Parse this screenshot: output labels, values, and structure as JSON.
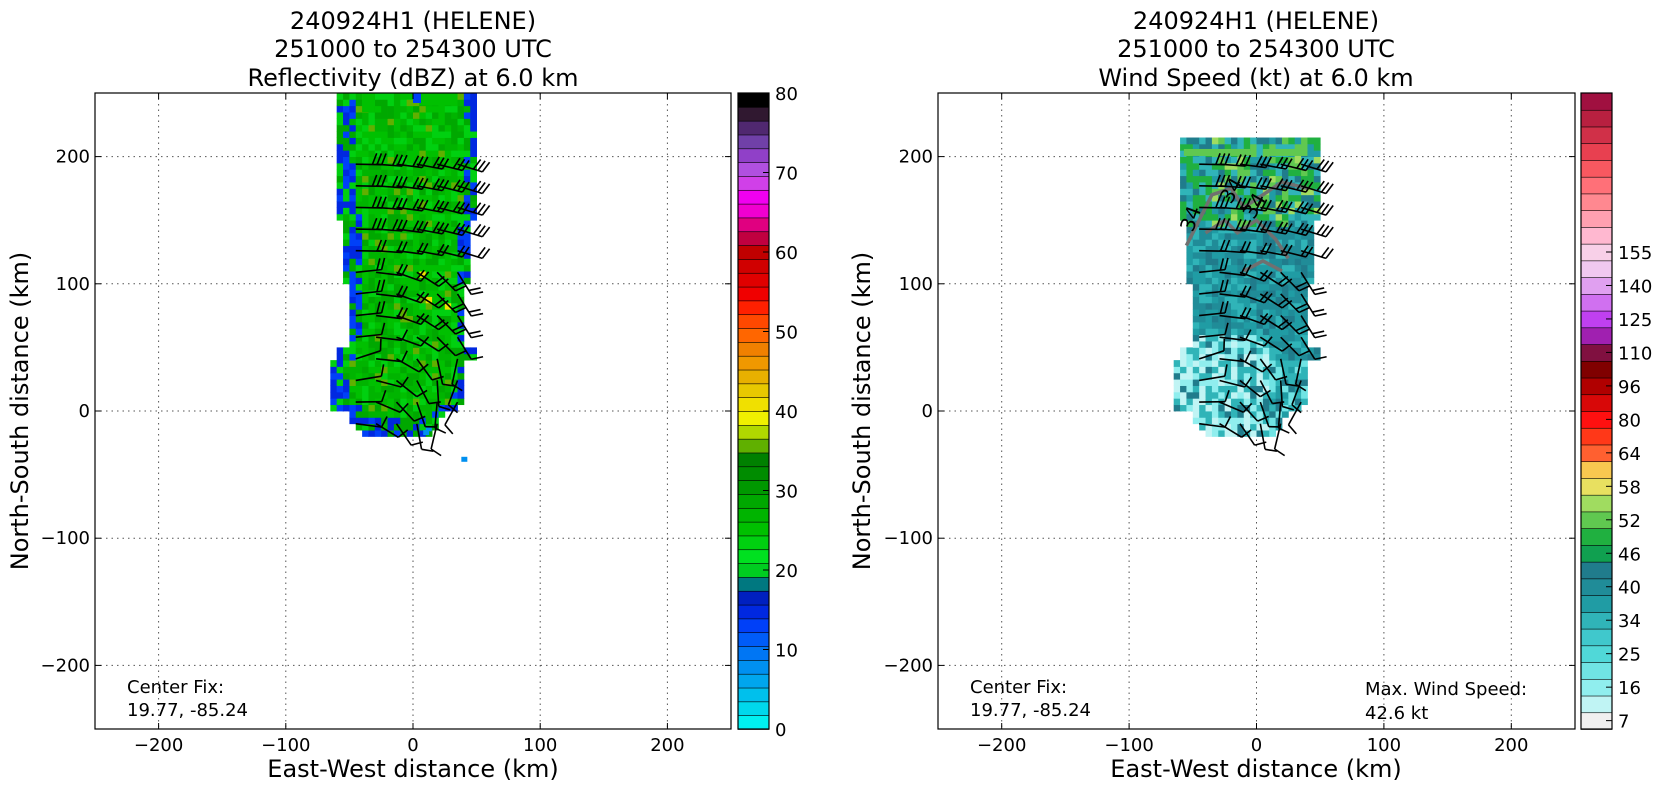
{
  "chart_data": [
    {
      "type": "heatmap",
      "title_lines": [
        "240924H1 (HELENE)",
        "251000 to 254300 UTC",
        "Reflectivity (dBZ) at 6.0 km"
      ],
      "xlabel": "East-West distance (km)",
      "ylabel": "North-South distance (km)",
      "xlim": [
        -250,
        250
      ],
      "ylim": [
        -250,
        250
      ],
      "xticks": [
        -200,
        -100,
        0,
        100,
        200
      ],
      "yticks": [
        -200,
        -100,
        0,
        100,
        200
      ],
      "xtick_labels": [
        "−200",
        "−100",
        "0",
        "100",
        "200"
      ],
      "ytick_labels": [
        "−200",
        "−100",
        "0",
        "100",
        "200"
      ],
      "grid": true,
      "annotations": [
        {
          "lines": [
            "Center Fix:",
            "19.77, -85.24"
          ],
          "position": "bottom-left"
        }
      ],
      "colorbar": {
        "min": 0,
        "max": 80,
        "levels": 32,
        "tick_values": [
          0,
          10,
          20,
          30,
          40,
          50,
          60,
          70,
          80
        ],
        "tick_labels": [
          "0",
          "10",
          "20",
          "30",
          "40",
          "50",
          "60",
          "70",
          "80"
        ],
        "colors": [
          "#00f0f0",
          "#00d8ec",
          "#00c0ec",
          "#00a6ee",
          "#0090f0",
          "#0076f4",
          "#005cf8",
          "#0040f8",
          "#0028e0",
          "#0020c0",
          "#007880",
          "#00cc20",
          "#00e020",
          "#00d010",
          "#00c000",
          "#00b400",
          "#00a800",
          "#009800",
          "#008c00",
          "#008000",
          "#60b000",
          "#b0d800",
          "#f0f000",
          "#f0e000",
          "#e8c800",
          "#e8b000",
          "#f09800",
          "#f08000",
          "#ff6600",
          "#ff4800",
          "#ff2000",
          "#f00000",
          "#e00000",
          "#d00000",
          "#c00000",
          "#c00040",
          "#e00080",
          "#f000d0",
          "#f000f0",
          "#d040e8",
          "#b050e0",
          "#9040c8",
          "#7040a8",
          "#502870",
          "#301830",
          "#000000"
        ]
      },
      "field": {
        "extent_x": [
          -60,
          50
        ],
        "extent_y": [
          -20,
          250
        ],
        "dominant_range_dbz": [
          15,
          30
        ],
        "max_dbz": 40
      },
      "wind_barbs": true
    },
    {
      "type": "heatmap",
      "title_lines": [
        "240924H1 (HELENE)",
        "251000 to 254300 UTC",
        "Wind Speed (kt) at 6.0 km"
      ],
      "xlabel": "East-West distance (km)",
      "ylabel": "North-South distance (km)",
      "xlim": [
        -250,
        250
      ],
      "ylim": [
        -250,
        250
      ],
      "xticks": [
        -200,
        -100,
        0,
        100,
        200
      ],
      "yticks": [
        -200,
        -100,
        0,
        100,
        200
      ],
      "xtick_labels": [
        "−200",
        "−100",
        "0",
        "100",
        "200"
      ],
      "ytick_labels": [
        "−200",
        "−100",
        "0",
        "100",
        "200"
      ],
      "grid": true,
      "annotations": [
        {
          "lines": [
            "Center Fix:",
            "19.77, -85.24"
          ],
          "position": "bottom-left"
        },
        {
          "lines": [
            "Max. Wind Speed:",
            "42.6 kt"
          ],
          "position": "bottom-right"
        }
      ],
      "contour_labels": [
        "34",
        "34",
        "34"
      ],
      "max_wind_kt": 42.6,
      "colorbar": {
        "min": 7,
        "max": 160,
        "levels": 32,
        "tick_values": [
          7,
          16,
          25,
          34,
          40,
          46,
          52,
          58,
          64,
          80,
          96,
          110,
          125,
          140,
          155
        ],
        "tick_labels": [
          "7",
          "16",
          "25",
          "34",
          "40",
          "46",
          "52",
          "58",
          "64",
          "80",
          "96",
          "110",
          "125",
          "140",
          "155"
        ],
        "colors": [
          "#f0f0f0",
          "#c0f4f4",
          "#90eeee",
          "#70e4e4",
          "#50d8d8",
          "#40c8cc",
          "#30b4b8",
          "#209ca4",
          "#208c98",
          "#207c8c",
          "#10a050",
          "#20b040",
          "#60c850",
          "#a0dc60",
          "#e8e060",
          "#f8c850",
          "#ff6030",
          "#ff3818",
          "#ff1010",
          "#d80808",
          "#b00000",
          "#800000",
          "#801040",
          "#a020b0",
          "#c040f0",
          "#d070f0",
          "#e0a0f0",
          "#f0c8f0",
          "#f8d0e8",
          "#ffb8d0",
          "#ffa0b0",
          "#ff8890",
          "#ff7078",
          "#f85860",
          "#e84050",
          "#d03048",
          "#b82040",
          "#a01040"
        ],
        "levels_per_tick": 2
      },
      "field": {
        "extent_x": [
          -60,
          50
        ],
        "extent_y": [
          -20,
          220
        ],
        "dominant_range_kt": [
          16,
          34
        ],
        "max_kt": 42.6
      },
      "wind_barbs": true
    }
  ]
}
